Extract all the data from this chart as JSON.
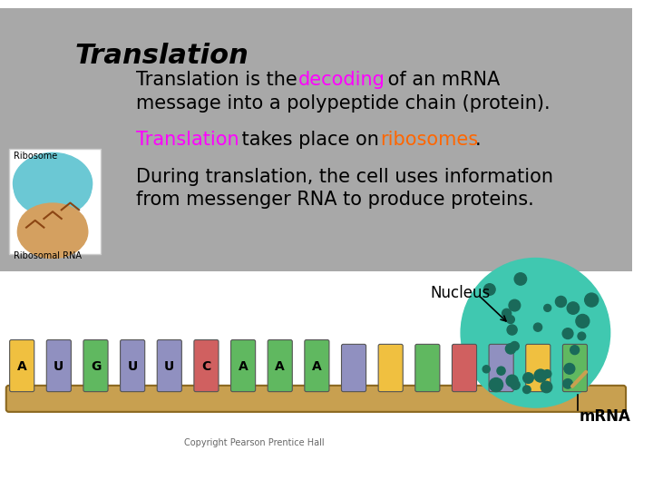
{
  "background_color": "#b0b0b0",
  "white_bg": "#ffffff",
  "title": "Translation",
  "title_color": "#000000",
  "title_fontsize": 22,
  "line1_parts": [
    {
      "text": "Translation is the ",
      "color": "#000000",
      "bold": false
    },
    {
      "text": "decoding",
      "color": "#ff00ff",
      "bold": false
    },
    {
      "text": " of an mRNA",
      "color": "#000000",
      "bold": false
    }
  ],
  "line2": "message into a polypeptide chain (protein).",
  "line3_parts": [
    {
      "text": "Translation",
      "color": "#ff00ff",
      "bold": false
    },
    {
      "text": " takes place on ",
      "color": "#000000",
      "bold": false
    },
    {
      "text": "ribosomes",
      "color": "#ff6600",
      "bold": false
    },
    {
      "text": ".",
      "color": "#000000",
      "bold": false
    }
  ],
  "line4": "During translation, the cell uses information",
  "line5": "from messenger RNA to produce proteins.",
  "nucleus_label": "Nucleus",
  "mrna_label": "mRNA",
  "copyright": "Copyright Pearson Prentice Hall",
  "font_family": "Comic Sans MS",
  "text_fontsize": 15,
  "gray_box_color": "#a8a8a8",
  "ribosome_label": "Ribosomal RNA",
  "fibosome_label2": "Ribosome",
  "codon_letters": [
    "A",
    "U",
    "G",
    "U",
    "U",
    "C",
    "A",
    "A",
    "A"
  ],
  "codon_colors": [
    "#f0c040",
    "#9090d0",
    "#60b060",
    "#9090d0",
    "#9090d0",
    "#e06060",
    "#60b060",
    "#60b060",
    "#60b060"
  ]
}
